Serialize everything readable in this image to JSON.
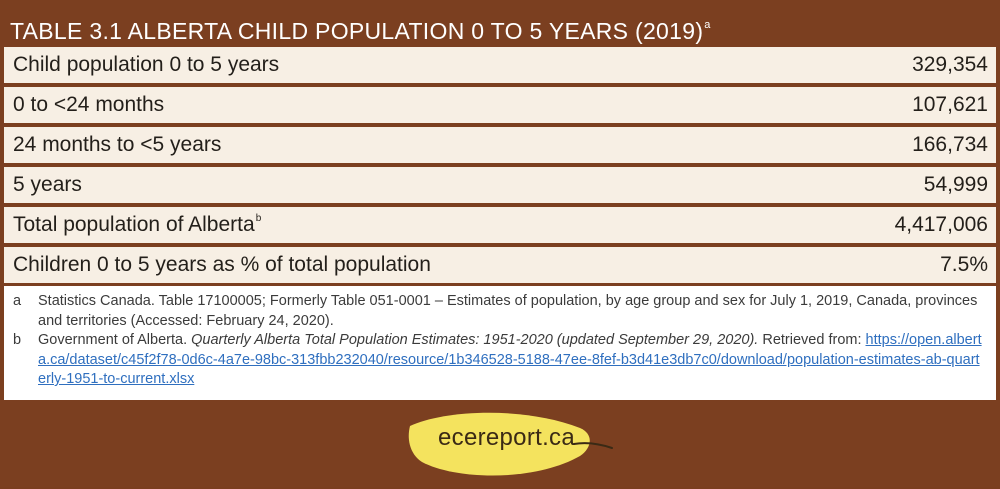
{
  "table": {
    "title": "TABLE 3.1 ALBERTA CHILD POPULATION 0 TO 5 YEARS (2019)",
    "title_sup": "a",
    "rows": [
      {
        "label": "Child population 0 to 5 years",
        "sup": "",
        "value": "329,354"
      },
      {
        "label": "0 to <24 months",
        "sup": "",
        "value": "107,621"
      },
      {
        "label": "24 months to <5 years",
        "sup": "",
        "value": "166,734"
      },
      {
        "label": "5 years",
        "sup": "",
        "value": "54,999"
      },
      {
        "label": "Total population of Alberta",
        "sup": "b",
        "value": "4,417,006"
      },
      {
        "label": "Children 0 to 5 years as % of total population",
        "sup": "",
        "value": "7.5%"
      }
    ]
  },
  "notes": {
    "a": {
      "mark": "a",
      "text": "Statistics Canada. Table 17100005; Formerly Table 051-0001 – Estimates of population, by age group and sex for July 1, 2019, Canada, provinces and territories (Accessed: February 24, 2020)."
    },
    "b": {
      "mark": "b",
      "text_before": "Government of Alberta. ",
      "title_italic": "Quarterly Alberta Total Population Estimates: 1951-2020 (updated September 29, 2020).",
      "text_after": " Retrieved from: ",
      "link": "https://open.alberta.ca/dataset/c45f2f78-0d6c-4a7e-98bc-313fbb232040/resource/1b346528-5188-47ee-8fef-b3d41e3db7c0/download/population-estimates-ab-quarterly-1951-to-current.xlsx"
    }
  },
  "logo": {
    "text": "ecereport.ca",
    "leaf_color": "#f4e35e",
    "stem_color": "#3a2a15"
  },
  "colors": {
    "background": "#7b3f20",
    "row_bg": "#f7efe4",
    "link": "#2f6fbf"
  }
}
